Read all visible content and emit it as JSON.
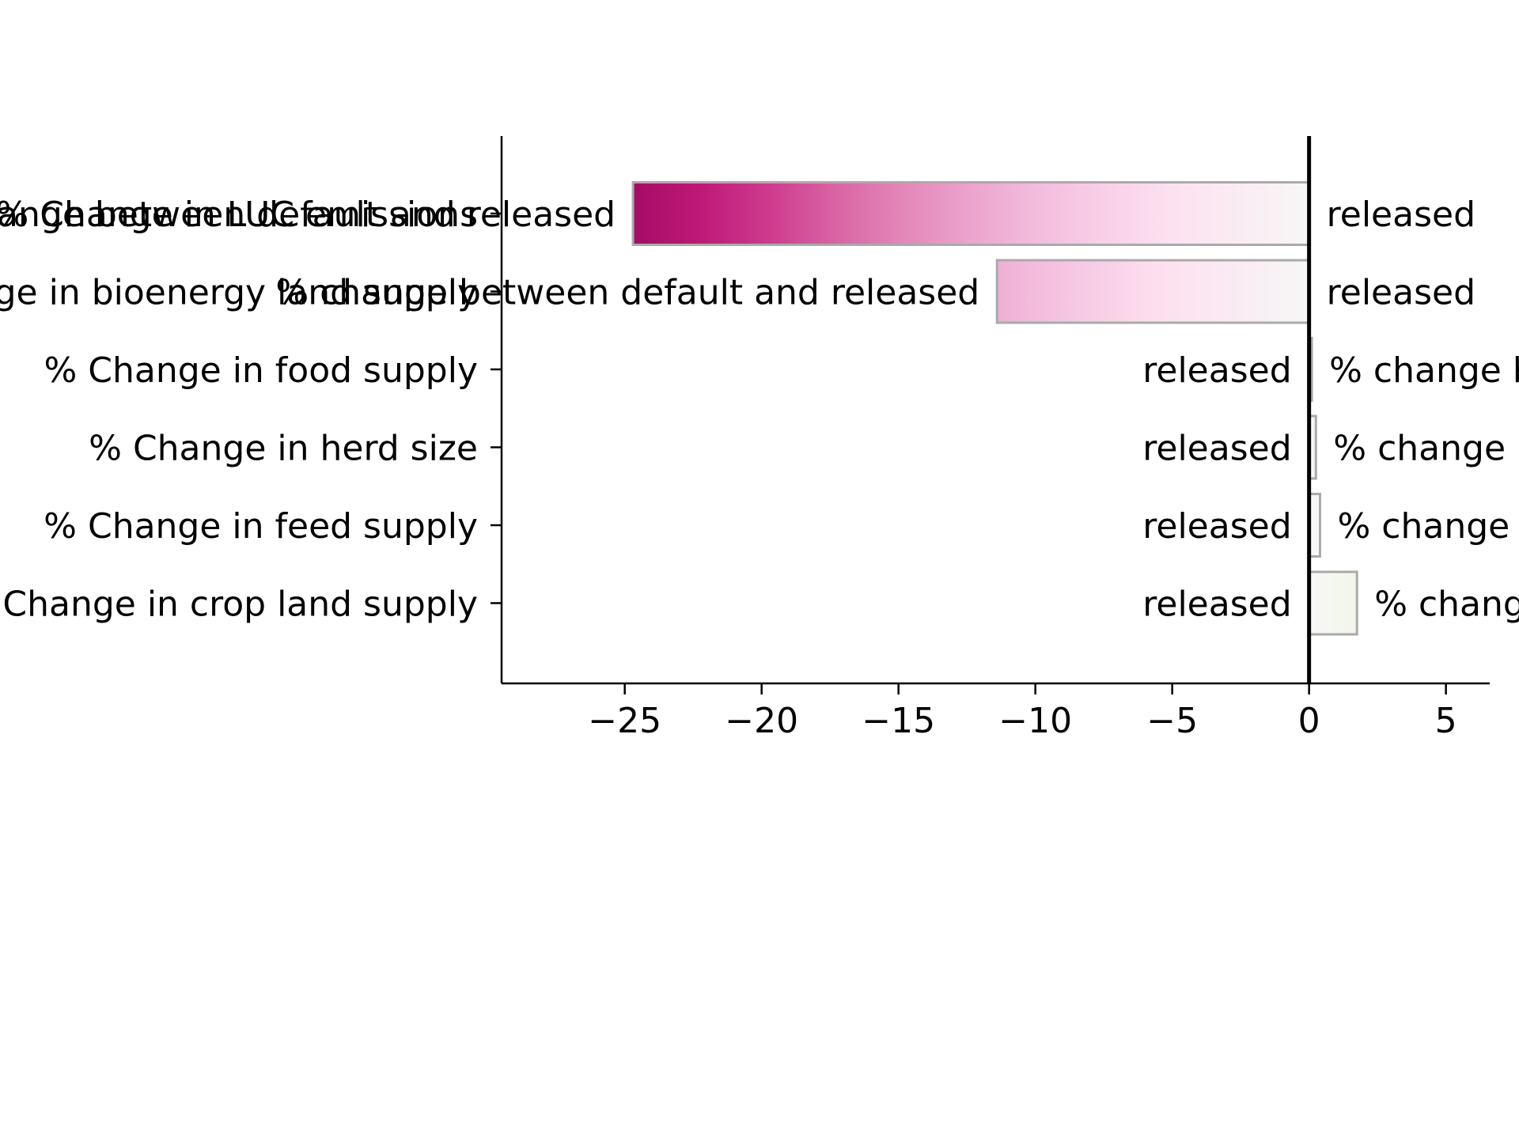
{
  "chart_data": {
    "type": "bar",
    "orientation": "horizontal",
    "title": "",
    "xlabel": "",
    "ylabel": "",
    "xlim": [
      -29.5,
      6.6
    ],
    "x_ticks": [
      -25,
      -20,
      -15,
      -10,
      -5,
      0,
      5
    ],
    "x_tick_labels": [
      "−25",
      "−20",
      "−15",
      "−10",
      "−5",
      "0",
      "5"
    ],
    "categories": [
      "% Change in LUC emissions",
      "% Change in bioenergy land supply",
      "% Change in food supply",
      "% Change in herd size",
      "% Change in feed supply",
      "% Change in crop land supply"
    ],
    "values": [
      -24.7,
      -11.4,
      0.1,
      0.25,
      0.4,
      1.75
    ],
    "bar_labels": {
      "far": "% change between default and released",
      "near": "released"
    },
    "zero_line": true,
    "grid": false,
    "colormap": "PiYG",
    "bar_edge_color": "#aaaaaa"
  }
}
